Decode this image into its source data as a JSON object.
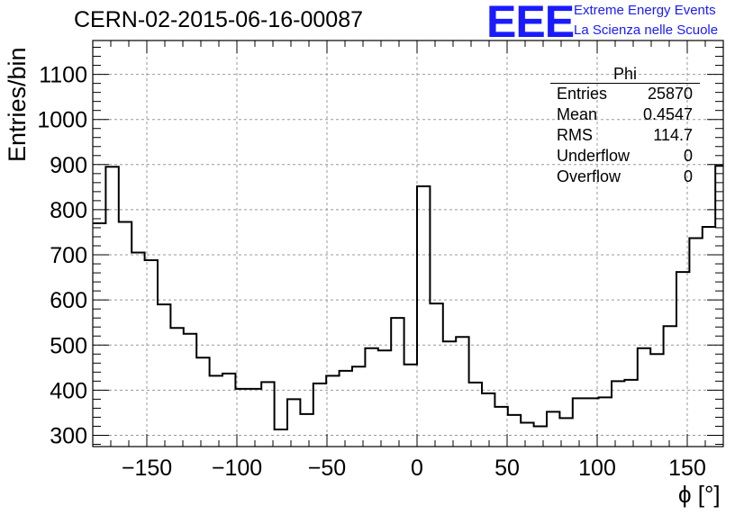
{
  "header": {
    "title": "CERN-02-2015-06-16-00087",
    "logo_text": "EEE",
    "logo_line1": "Extreme Energy Events",
    "logo_line2": "La Scienza nelle Scuole"
  },
  "stats": {
    "title": "Phi",
    "rows": [
      {
        "label": "Entries",
        "value": "25870"
      },
      {
        "label": "Mean",
        "value": "0.4547"
      },
      {
        "label": "RMS",
        "value": "114.7"
      },
      {
        "label": "Underflow",
        "value": "0"
      },
      {
        "label": "Overflow",
        "value": "0"
      }
    ]
  },
  "chart_data": {
    "type": "histogram",
    "xlabel": "ϕ [°]",
    "ylabel": "Entries/bin",
    "xlim": [
      -180,
      170
    ],
    "ylim": [
      275,
      1175
    ],
    "bin_width": 7.2,
    "xticks": [
      -150,
      -100,
      -50,
      0,
      50,
      100,
      150
    ],
    "yticks": [
      300,
      400,
      500,
      600,
      700,
      800,
      900,
      1000,
      1100
    ],
    "grid": true,
    "values": [
      770,
      895,
      773,
      705,
      688,
      590,
      538,
      525,
      472,
      432,
      437,
      403,
      403,
      418,
      313,
      380,
      347,
      415,
      432,
      443,
      452,
      493,
      488,
      560,
      457,
      852,
      592,
      508,
      518,
      417,
      393,
      363,
      345,
      328,
      320,
      352,
      338,
      382,
      382,
      384,
      420,
      423,
      493,
      480,
      542,
      662,
      737,
      762,
      897
    ]
  }
}
